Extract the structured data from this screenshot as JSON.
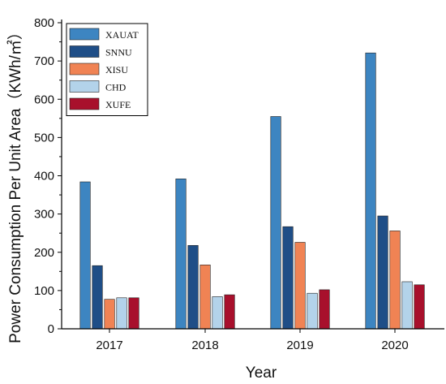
{
  "chart_data": {
    "type": "bar",
    "title": "",
    "xlabel": "Year",
    "ylabel": "Power Consumption Per Unit Area（KWh/㎡）",
    "categories": [
      "2017",
      "2018",
      "2019",
      "2020"
    ],
    "ylim": [
      0,
      800
    ],
    "yticks": [
      0,
      100,
      200,
      300,
      400,
      500,
      600,
      700,
      800
    ],
    "grid": false,
    "legend_position": "top-left",
    "series": [
      {
        "name": "XAUAT",
        "color": "#3d85c1",
        "values": [
          384,
          392,
          555,
          721
        ]
      },
      {
        "name": "SNNU",
        "color": "#1f4e87",
        "values": [
          165,
          218,
          267,
          295
        ]
      },
      {
        "name": "XISU",
        "color": "#f08354",
        "values": [
          77,
          167,
          226,
          256
        ]
      },
      {
        "name": "CHD",
        "color": "#b3d3ea",
        "values": [
          81,
          84,
          93,
          123
        ]
      },
      {
        "name": "XUFE",
        "color": "#a8102c",
        "values": [
          81,
          89,
          102,
          115
        ]
      }
    ]
  }
}
